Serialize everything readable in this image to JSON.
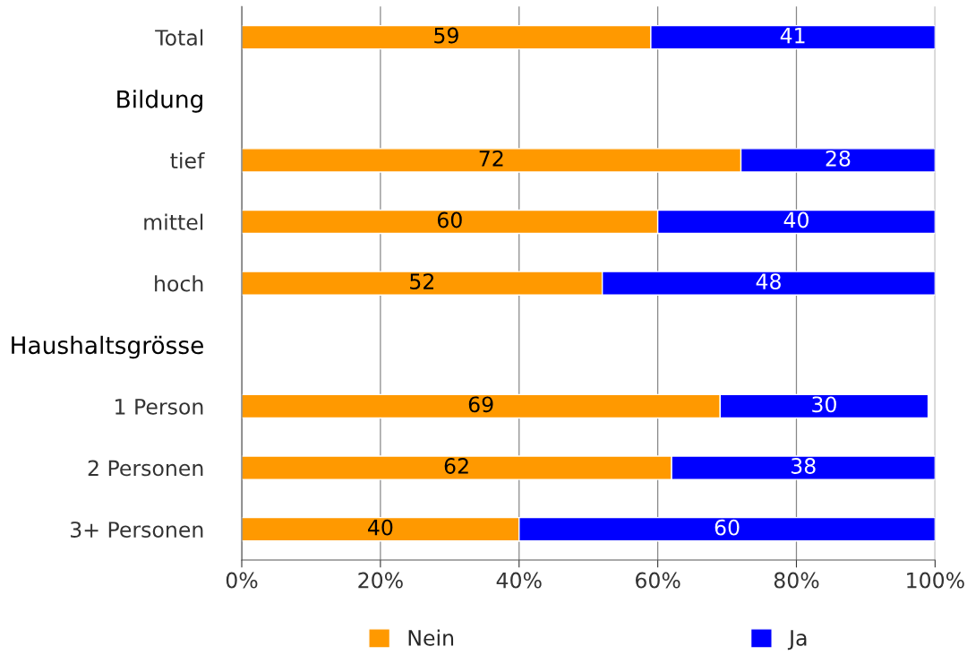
{
  "chart_data": {
    "type": "bar",
    "orientation": "horizontal",
    "stacked": true,
    "categories": [
      "Total",
      "Bildung",
      "tief",
      "mittel",
      "hoch",
      "Haushaltsgrösse",
      "1 Person",
      "2 Personen",
      "3+ Personen"
    ],
    "series": [
      {
        "name": "Nein",
        "color": "#ff9900",
        "values": [
          59,
          null,
          72,
          60,
          52,
          null,
          69,
          62,
          40
        ]
      },
      {
        "name": "Ja",
        "color": "#0000ff",
        "values": [
          41,
          null,
          28,
          40,
          48,
          null,
          30,
          38,
          60
        ]
      }
    ],
    "xlim": [
      0,
      100
    ],
    "xticks": [
      {
        "value": 0,
        "label": "0%"
      },
      {
        "value": 20,
        "label": "20%"
      },
      {
        "value": 40,
        "label": "40%"
      },
      {
        "value": 60,
        "label": "60%"
      },
      {
        "value": 80,
        "label": "80%"
      },
      {
        "value": 100,
        "label": "100%"
      }
    ],
    "grid": "x",
    "legend": "bottom",
    "data_labels": true
  }
}
